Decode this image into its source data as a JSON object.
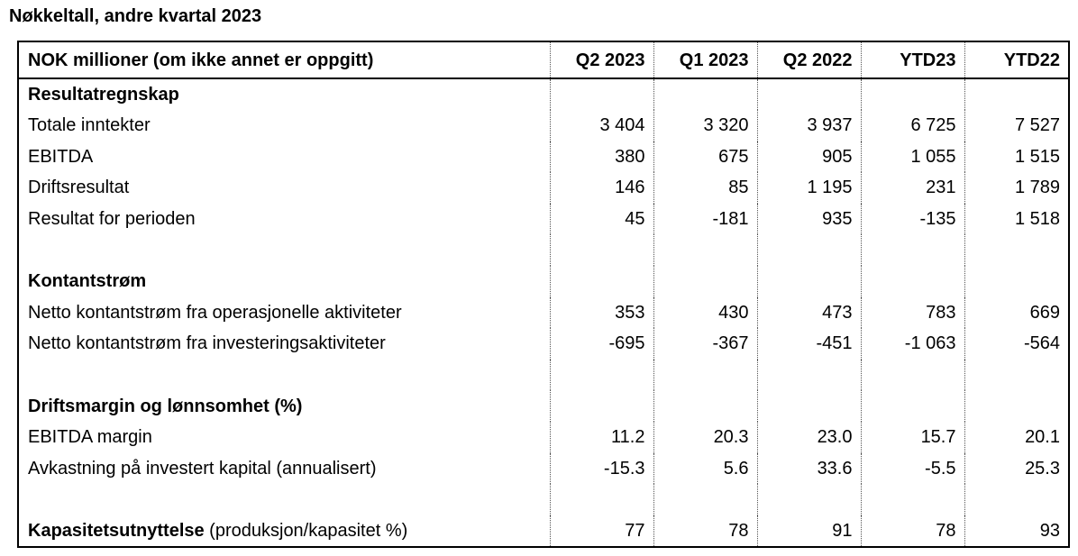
{
  "title": "Nøkkeltall, andre kvartal 2023",
  "header": {
    "label": "NOK millioner (om ikke annet er oppgitt)",
    "columns": [
      "Q2 2023",
      "Q1 2023",
      "Q2 2022",
      "YTD23",
      "YTD22"
    ]
  },
  "sections": {
    "resultat": {
      "title": "Resultatregnskap",
      "rows": [
        {
          "label": "Totale inntekter",
          "values": [
            "3 404",
            "3 320",
            "3 937",
            "6 725",
            "7 527"
          ]
        },
        {
          "label": "EBITDA",
          "values": [
            "380",
            "675",
            "905",
            "1 055",
            "1 515"
          ]
        },
        {
          "label": "Driftsresultat",
          "values": [
            "146",
            "85",
            "1 195",
            "231",
            "1 789"
          ]
        },
        {
          "label": "Resultat for perioden",
          "values": [
            "45",
            "-181",
            "935",
            "-135",
            "1 518"
          ]
        }
      ]
    },
    "kontantstrom": {
      "title": "Kontantstrøm",
      "rows": [
        {
          "label": "Netto kontantstrøm fra operasjonelle aktiviteter",
          "values": [
            "353",
            "430",
            "473",
            "783",
            "669"
          ]
        },
        {
          "label": "Netto kontantstrøm fra investeringsaktiviteter",
          "values": [
            "-695",
            "-367",
            "-451",
            "-1 063",
            "-564"
          ]
        }
      ]
    },
    "margin": {
      "title": "Driftsmargin og lønnsomhet (%)",
      "rows": [
        {
          "label": "EBITDA margin",
          "values": [
            "11.2",
            "20.3",
            "23.0",
            "15.7",
            "20.1"
          ]
        },
        {
          "label": "Avkastning på investert kapital (annualisert)",
          "values": [
            "-15.3",
            "5.6",
            "33.6",
            "-5.5",
            "25.3"
          ]
        }
      ]
    },
    "kapasitet": {
      "label_bold": "Kapasitetsutnyttelse",
      "label_rest": " (produksjon/kapasitet %)",
      "values": [
        "77",
        "78",
        "91",
        "78",
        "93"
      ]
    }
  }
}
